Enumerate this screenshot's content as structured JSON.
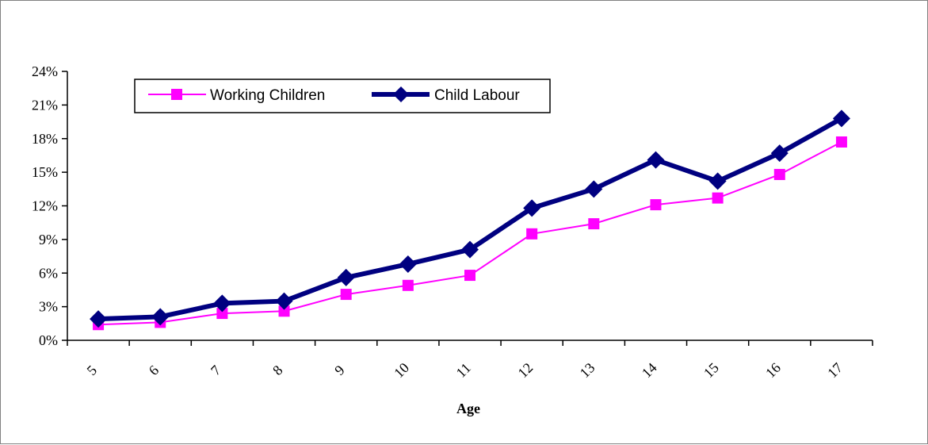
{
  "chart_data": {
    "type": "line",
    "title": "",
    "xlabel": "Age",
    "ylabel": "",
    "categories": [
      "5",
      "6",
      "7",
      "8",
      "9",
      "10",
      "11",
      "12",
      "13",
      "14",
      "15",
      "16",
      "17"
    ],
    "y_ticks": [
      "0%",
      "3%",
      "6%",
      "9%",
      "12%",
      "15%",
      "18%",
      "21%",
      "24%"
    ],
    "ylim": [
      0,
      24
    ],
    "y_unit": "%",
    "grid": false,
    "legend_position": "top-left",
    "series": [
      {
        "name": "Working Children",
        "values": [
          1.4,
          1.6,
          2.4,
          2.6,
          4.1,
          4.9,
          5.8,
          9.5,
          10.4,
          12.1,
          12.7,
          14.8,
          17.7
        ],
        "color": "#ff00ff",
        "marker": "square"
      },
      {
        "name": "Child Labour",
        "values": [
          1.9,
          2.1,
          3.3,
          3.5,
          5.6,
          6.8,
          8.1,
          11.8,
          13.5,
          16.1,
          14.2,
          16.7,
          19.8
        ],
        "color": "#000080",
        "marker": "diamond"
      }
    ]
  }
}
